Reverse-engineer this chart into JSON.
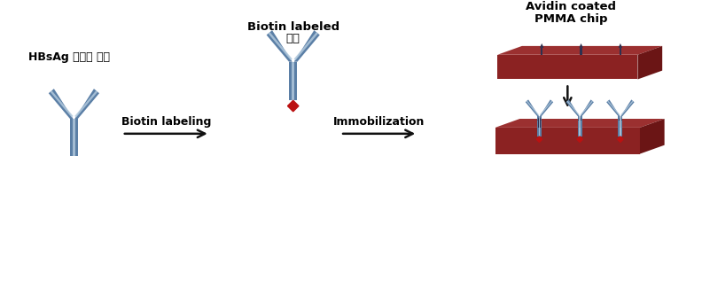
{
  "bg_color": "#ffffff",
  "antibody_color": "#5b7fa6",
  "antibody_light_color": "#b0c8dc",
  "chip_top_color": "#9b3030",
  "chip_front_color": "#8b2222",
  "chip_right_color": "#6b1515",
  "avidin_color": "#2c3050",
  "biotin_color": "#bb1111",
  "arrow_color": "#111111",
  "label1": "HBsAg 특이적 항체",
  "label2_line1": "Biotin labeled",
  "label2_line2": "항체",
  "label3_line1": "Avidin coated",
  "label3_line2": "PMMA chip",
  "step1_label": "Biotin labeling",
  "step2_label": "Immobilization"
}
